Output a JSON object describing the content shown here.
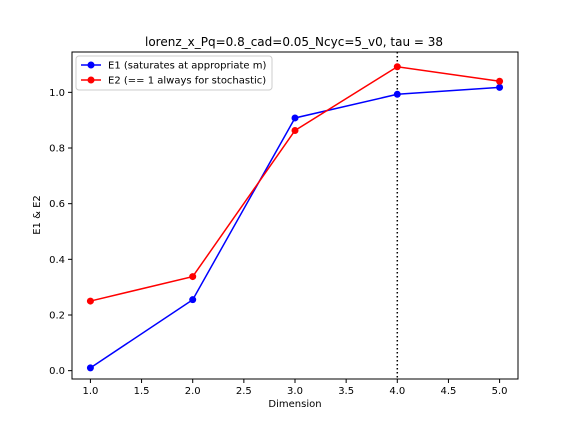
{
  "chart_data": {
    "type": "line",
    "title": "lorenz_x_Pq=0.8_cad=0.05_Ncyc=5_v0, tau = 38",
    "xlabel": "Dimension",
    "ylabel": "E1 & E2",
    "xlim": [
      0.82,
      5.18
    ],
    "ylim": [
      -0.03,
      1.145
    ],
    "xticks": [
      1.0,
      1.5,
      2.0,
      2.5,
      3.0,
      3.5,
      4.0,
      4.5,
      5.0
    ],
    "xtick_labels": [
      "1.0",
      "1.5",
      "2.0",
      "2.5",
      "3.0",
      "3.5",
      "4.0",
      "4.5",
      "5.0"
    ],
    "yticks": [
      0.0,
      0.2,
      0.4,
      0.6,
      0.8,
      1.0
    ],
    "ytick_labels": [
      "0.0",
      "0.2",
      "0.4",
      "0.6",
      "0.8",
      "1.0"
    ],
    "grid": false,
    "legend_position": "top-left",
    "vline": {
      "x": 4,
      "style": "dotted",
      "color": "#000000"
    },
    "x": [
      1,
      2,
      3,
      4,
      5
    ],
    "series": [
      {
        "name": "E1 (saturates at appropriate m)",
        "color": "#0000ff",
        "values": [
          0.01,
          0.255,
          0.908,
          0.993,
          1.018
        ]
      },
      {
        "name": "E2 (== 1 always for stochastic)",
        "color": "#ff0000",
        "values": [
          0.25,
          0.338,
          0.863,
          1.092,
          1.04
        ]
      }
    ]
  }
}
